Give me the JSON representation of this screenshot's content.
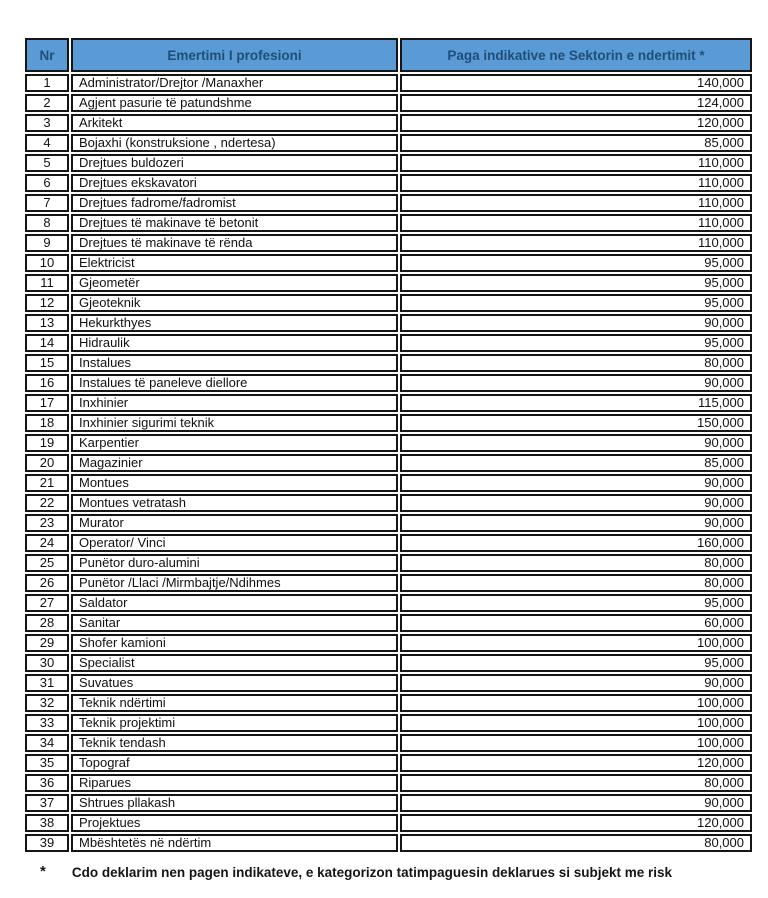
{
  "document": {
    "table": {
      "columns": [
        {
          "key": "nr",
          "label": "Nr"
        },
        {
          "key": "profession",
          "label": "Emertimi I profesioni"
        },
        {
          "key": "wage",
          "label": "Paga indikative ne Sektorin e ndertimit *"
        }
      ],
      "rows": [
        {
          "nr": "1",
          "profession": "Administrator/Drejtor /Manaxher",
          "wage": "140,000"
        },
        {
          "nr": "2",
          "profession": "Agjent pasurie të patundshme",
          "wage": "124,000"
        },
        {
          "nr": "3",
          "profession": "Arkitekt",
          "wage": "120,000"
        },
        {
          "nr": "4",
          "profession": "Bojaxhi (konstruksione , ndertesa)",
          "wage": "85,000"
        },
        {
          "nr": "5",
          "profession": "Drejtues buldozeri",
          "wage": "110,000"
        },
        {
          "nr": "6",
          "profession": "Drejtues ekskavatori",
          "wage": "110,000"
        },
        {
          "nr": "7",
          "profession": "Drejtues fadrome/fadromist",
          "wage": "110,000"
        },
        {
          "nr": "8",
          "profession": "Drejtues të makinave të betonit",
          "wage": "110,000"
        },
        {
          "nr": "9",
          "profession": "Drejtues të makinave të rënda",
          "wage": "110,000"
        },
        {
          "nr": "10",
          "profession": "Elektricist",
          "wage": "95,000"
        },
        {
          "nr": "11",
          "profession": "Gjeometër",
          "wage": "95,000"
        },
        {
          "nr": "12",
          "profession": "Gjeoteknik",
          "wage": "95,000"
        },
        {
          "nr": "13",
          "profession": "Hekurkthyes",
          "wage": "90,000"
        },
        {
          "nr": "14",
          "profession": "Hidraulik",
          "wage": "95,000"
        },
        {
          "nr": "15",
          "profession": "Instalues",
          "wage": "80,000"
        },
        {
          "nr": "16",
          "profession": "Instalues të paneleve diellore",
          "wage": "90,000"
        },
        {
          "nr": "17",
          "profession": "Inxhinier",
          "wage": "115,000"
        },
        {
          "nr": "18",
          "profession": "Inxhinier sigurimi teknik",
          "wage": "150,000"
        },
        {
          "nr": "19",
          "profession": "Karpentier",
          "wage": "90,000"
        },
        {
          "nr": "20",
          "profession": "Magazinier",
          "wage": "85,000"
        },
        {
          "nr": "21",
          "profession": "Montues",
          "wage": "90,000"
        },
        {
          "nr": "22",
          "profession": "Montues vetratash",
          "wage": "90,000"
        },
        {
          "nr": "23",
          "profession": "Murator",
          "wage": "90,000"
        },
        {
          "nr": "24",
          "profession": "Operator/ Vinci",
          "wage": "160,000"
        },
        {
          "nr": "25",
          "profession": "Punëtor duro-alumini",
          "wage": "80,000"
        },
        {
          "nr": "26",
          "profession": "Punëtor /Llaci /Mirmbajtje/Ndihmes",
          "wage": "80,000"
        },
        {
          "nr": "27",
          "profession": "Saldator",
          "wage": "95,000"
        },
        {
          "nr": "28",
          "profession": "Sanitar",
          "wage": "60,000"
        },
        {
          "nr": "29",
          "profession": "Shofer kamioni",
          "wage": "100,000"
        },
        {
          "nr": "30",
          "profession": "Specialist",
          "wage": "95,000"
        },
        {
          "nr": "31",
          "profession": "Suvatues",
          "wage": "90,000"
        },
        {
          "nr": "32",
          "profession": "Teknik ndërtimi",
          "wage": "100,000"
        },
        {
          "nr": "33",
          "profession": "Teknik projektimi",
          "wage": "100,000"
        },
        {
          "nr": "34",
          "profession": "Teknik tendash",
          "wage": "100,000"
        },
        {
          "nr": "35",
          "profession": "Topograf",
          "wage": "120,000"
        },
        {
          "nr": "36",
          "profession": "Riparues",
          "wage": "80,000"
        },
        {
          "nr": "37",
          "profession": "Shtrues pllakash",
          "wage": "90,000"
        },
        {
          "nr": "38",
          "profession": "Projektues",
          "wage": "120,000"
        },
        {
          "nr": "39",
          "profession": "Mbështetës në ndërtim",
          "wage": "80,000"
        }
      ]
    },
    "footnote": {
      "marker": "*",
      "text": "Cdo deklarim nen pagen indikateve, e kategorizon tatimpaguesin deklarues si subjekt me risk"
    },
    "colors": {
      "header_bg": "#5B9BD5",
      "header_text": "#1F4E79",
      "border": "#151515",
      "body_text": "#111111",
      "page_bg": "#FFFFFF"
    }
  }
}
